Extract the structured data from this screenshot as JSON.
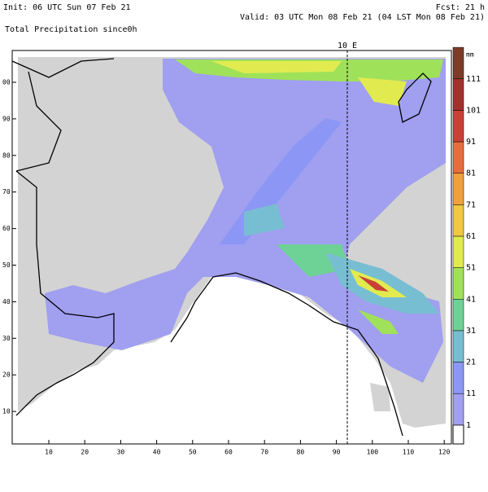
{
  "header": {
    "init": "Init: 06 UTC Sun 07 Feb 21",
    "fcst": "Fcst:   21 h",
    "valid": "Valid: 03 UTC Mon 08 Feb 21 (04 LST Mon 08 Feb 21)",
    "field": "Total Precipitation since0h"
  },
  "map": {
    "meridian_label": "10 E",
    "xticks": [
      10,
      20,
      30,
      40,
      50,
      60,
      70,
      80,
      90,
      100,
      110,
      120
    ],
    "yticks": [
      10,
      20,
      30,
      40,
      50,
      60,
      70,
      80,
      90,
      {
        "value": 100,
        "label": "00"
      }
    ]
  },
  "colorbar": {
    "unit": "mm",
    "levels": [
      1,
      11,
      21,
      31,
      41,
      51,
      61,
      71,
      81,
      91,
      101,
      111
    ],
    "colors": [
      "#a09ff0",
      "#8c96f5",
      "#78bed2",
      "#6ed296",
      "#a0e15a",
      "#e1eb50",
      "#f0c846",
      "#f0a03c",
      "#e66e3c",
      "#c84137",
      "#a0322d",
      "#7d3c28"
    ]
  }
}
